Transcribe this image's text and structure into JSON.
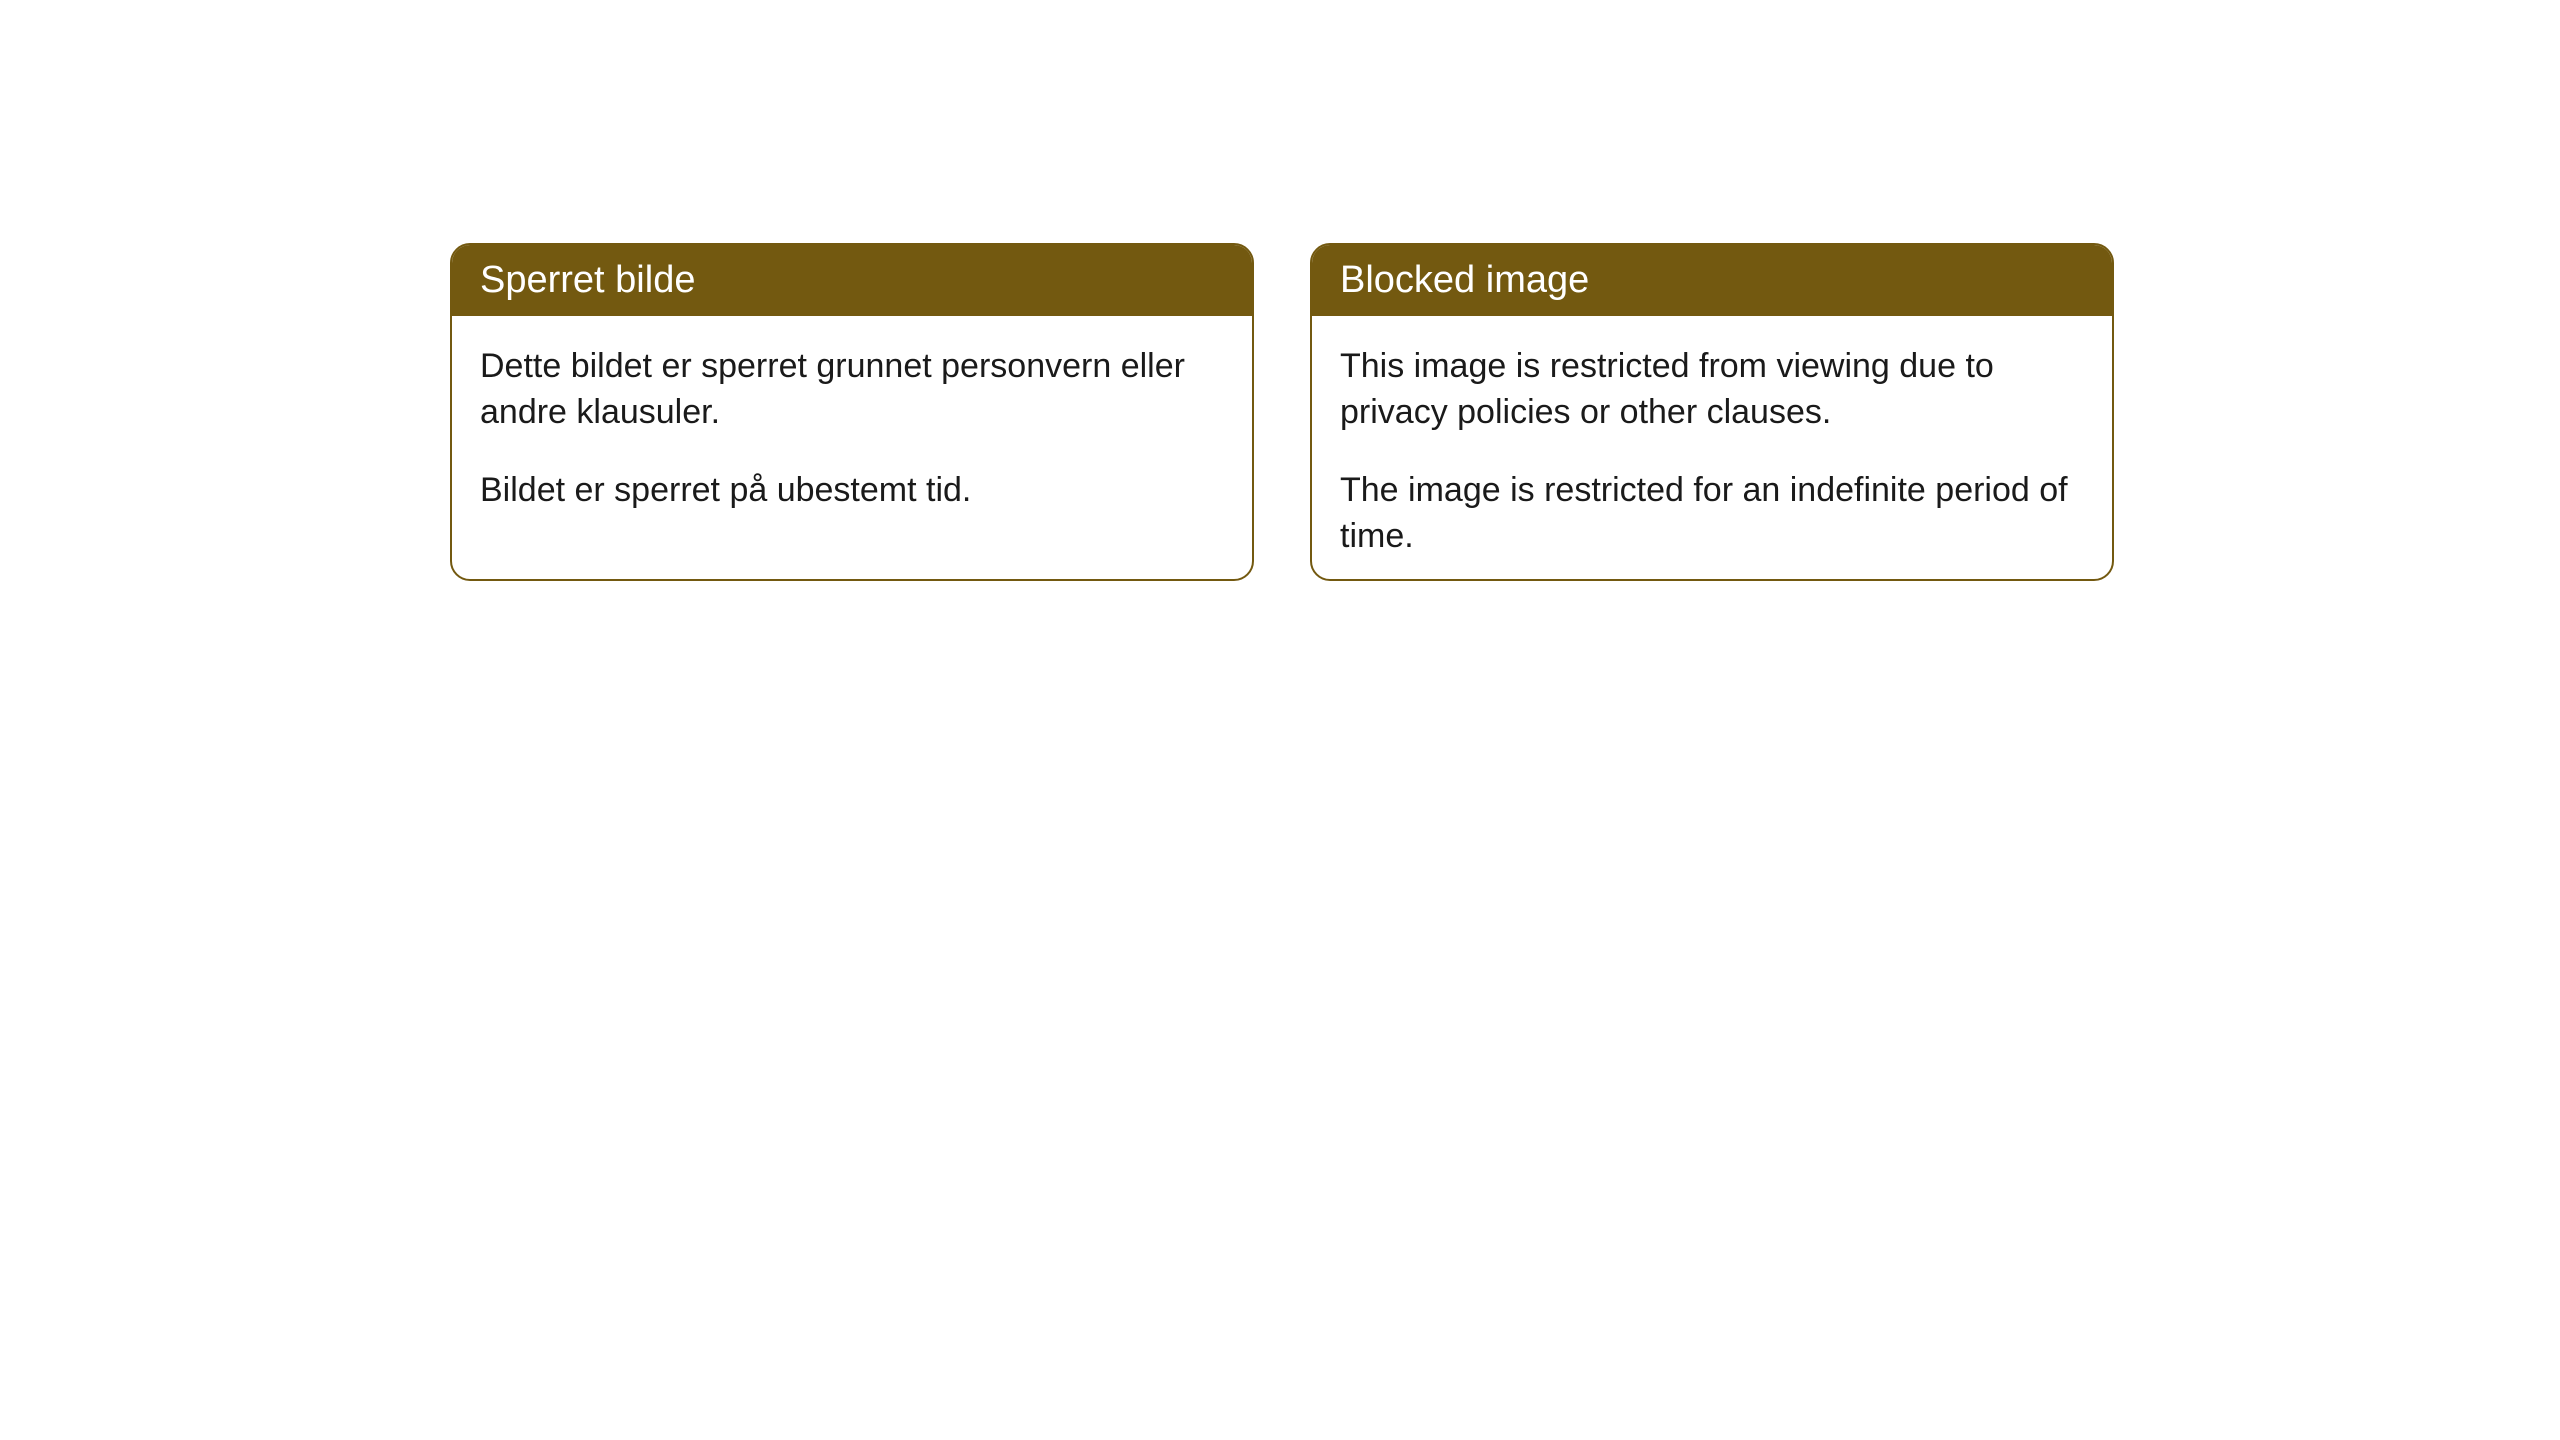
{
  "cards": [
    {
      "title": "Sperret bilde",
      "paragraph1": "Dette bildet er sperret grunnet personvern eller andre klausuler.",
      "paragraph2": "Bildet er sperret på ubestemt tid."
    },
    {
      "title": "Blocked image",
      "paragraph1": "This image is restricted from viewing due to privacy policies or other clauses.",
      "paragraph2": "The image is restricted for an indefinite period of time."
    }
  ],
  "styling": {
    "header_bg_color": "#735910",
    "header_text_color": "#ffffff",
    "border_color": "#735910",
    "body_bg_color": "#ffffff",
    "body_text_color": "#1a1a1a",
    "border_radius": 20,
    "title_fontsize": 38,
    "body_fontsize": 34
  }
}
